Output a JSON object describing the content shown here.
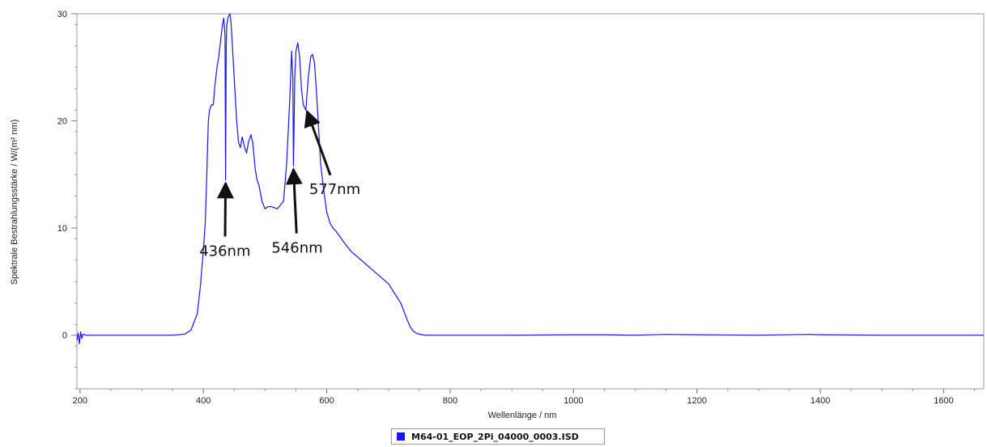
{
  "chart_data": {
    "type": "line",
    "title": "",
    "xlabel": "Wellenlänge / nm",
    "ylabel": "Spektrale Bestrahlungsstärke / W/(m² nm)",
    "xlim": [
      195,
      1665
    ],
    "ylim": [
      -5,
      30
    ],
    "xticks": [
      200,
      400,
      600,
      800,
      1000,
      1200,
      1400,
      1600
    ],
    "yticks": [
      0,
      10,
      20,
      30
    ],
    "grid": false,
    "legend_placement": "bottom-center",
    "series": [
      {
        "name": "M64-01_EOP_2Pi_04000_0003.ISD",
        "color": "#1414ff",
        "x": [
          195,
          197,
          199,
          201,
          203,
          205,
          210,
          220,
          250,
          300,
          350,
          370,
          380,
          390,
          395,
          400,
          403,
          405,
          408,
          410,
          413,
          416,
          419,
          422,
          425,
          428,
          431,
          433,
          435,
          436,
          437,
          438,
          440,
          443,
          445,
          448,
          451,
          454,
          457,
          460,
          463,
          467,
          470,
          473,
          477,
          480,
          484,
          487,
          490,
          495,
          500,
          505,
          510,
          520,
          530,
          535,
          540,
          543,
          545,
          546,
          547,
          548,
          550,
          553,
          556,
          559,
          562,
          566,
          570,
          574,
          577,
          580,
          583,
          587,
          590,
          595,
          600,
          605,
          610,
          615,
          620,
          630,
          640,
          660,
          680,
          700,
          720,
          730,
          735,
          740,
          745,
          750,
          755,
          760,
          770,
          780,
          800,
          900,
          1000,
          1050,
          1100,
          1150,
          1200,
          1300,
          1380,
          1400,
          1500,
          1600,
          1665
        ],
        "values": [
          -0.5,
          0.2,
          -0.8,
          0.3,
          -0.3,
          0.1,
          0.0,
          0.0,
          0.0,
          0.0,
          0.0,
          0.1,
          0.5,
          2.0,
          4.5,
          8.0,
          10.5,
          14.0,
          20.0,
          21.0,
          21.5,
          21.5,
          23.5,
          25.0,
          26.0,
          27.5,
          29.0,
          29.6,
          28.0,
          14.5,
          27.0,
          29.0,
          29.7,
          30.0,
          29.0,
          26.0,
          23.0,
          20.0,
          18.0,
          17.5,
          18.5,
          17.5,
          17.0,
          18.0,
          18.7,
          18.0,
          15.5,
          14.5,
          14.0,
          12.5,
          11.8,
          12.0,
          12.0,
          11.8,
          12.5,
          16.0,
          22.0,
          26.5,
          24.0,
          15.8,
          19.5,
          24.0,
          26.5,
          27.3,
          26.0,
          23.0,
          21.5,
          21.0,
          24.0,
          26.0,
          26.2,
          25.5,
          23.0,
          19.0,
          16.0,
          13.5,
          11.5,
          10.5,
          10.0,
          9.7,
          9.3,
          8.5,
          7.8,
          6.8,
          5.8,
          4.8,
          3.0,
          1.5,
          0.8,
          0.4,
          0.2,
          0.1,
          0.05,
          0.0,
          0.0,
          0.0,
          0.0,
          0.0,
          0.05,
          0.05,
          0.0,
          0.08,
          0.05,
          0.0,
          0.08,
          0.05,
          0.0,
          0.0,
          0.0
        ]
      }
    ],
    "annotations": [
      {
        "text": "436nm",
        "point_x": 436,
        "point_y": 14.2,
        "label_x": 435,
        "label_y": 8.0
      },
      {
        "text": "546nm",
        "point_x": 546,
        "point_y": 15.5,
        "label_x": 552,
        "label_y": 8.3
      },
      {
        "text": "577nm",
        "point_x": 568,
        "point_y": 20.9,
        "label_x": 613,
        "label_y": 13.8
      }
    ]
  }
}
